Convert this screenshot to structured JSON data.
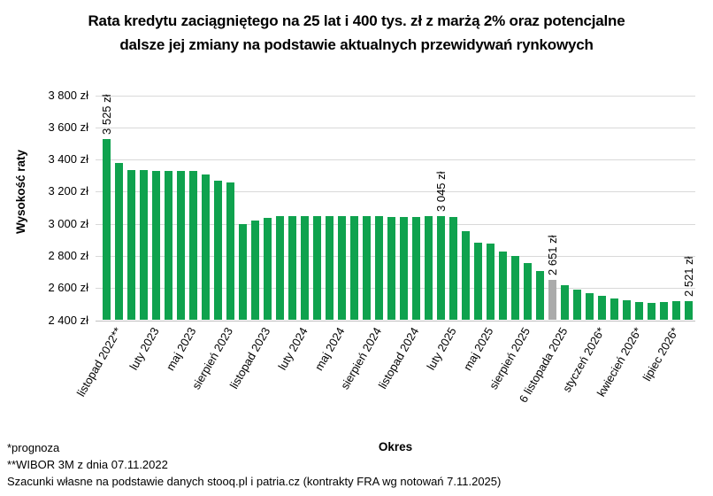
{
  "chart_data": {
    "type": "bar",
    "title_lines": [
      "Rata kredytu zaciągniętego na 25 lat i 400 tys. zł z marżą 2% oraz potencjalne",
      "dalsze jej zmiany na podstawie aktualnych przewidywań rynkowych"
    ],
    "ylabel": "Wysokość raty",
    "xlabel": "Okres",
    "ylim": [
      2400,
      3800
    ],
    "ytick_values": [
      3800,
      3600,
      3400,
      3200,
      3000,
      2800,
      2600,
      2400
    ],
    "ytick_labels": [
      "3 800 zł",
      "3 600 zł",
      "3 400 zł",
      "3 200 zł",
      "3 000 zł",
      "2 800 zł",
      "2 600 zł",
      "2 400 zł"
    ],
    "grid": true,
    "legend": "none",
    "bar_color": "#0FA24E",
    "highlight_color": "#ABABAB",
    "grid_color": "#D9D9D9",
    "highlight_index": 36,
    "values": [
      3525,
      3380,
      3336,
      3333,
      3331,
      3329,
      3330,
      3330,
      3309,
      3266,
      3256,
      3000,
      3022,
      3038,
      3046,
      3050,
      3048,
      3046,
      3048,
      3049,
      3050,
      3048,
      3045,
      3043,
      3042,
      3044,
      3047,
      3045,
      3044,
      2955,
      2885,
      2876,
      2827,
      2800,
      2755,
      2706,
      2651,
      2615,
      2590,
      2570,
      2550,
      2537,
      2526,
      2514,
      2506,
      2512,
      2516,
      2521
    ],
    "x_tick_labels": [
      {
        "index": 0,
        "label": "listopad 2022**"
      },
      {
        "index": 3,
        "label": "luty 2023"
      },
      {
        "index": 6,
        "label": "maj 2023"
      },
      {
        "index": 9,
        "label": "sierpień 2023"
      },
      {
        "index": 12,
        "label": "listopad 2023"
      },
      {
        "index": 15,
        "label": "luty 2024"
      },
      {
        "index": 18,
        "label": "maj 2024"
      },
      {
        "index": 21,
        "label": "sierpień 2024"
      },
      {
        "index": 24,
        "label": "listopad 2024"
      },
      {
        "index": 27,
        "label": "luty 2025"
      },
      {
        "index": 30,
        "label": "maj 2025"
      },
      {
        "index": 33,
        "label": "sierpień 2025"
      },
      {
        "index": 36,
        "label": "6 listopada 2025"
      },
      {
        "index": 39,
        "label": "styczeń 2026*"
      },
      {
        "index": 42,
        "label": "kwiecień 2026*"
      },
      {
        "index": 45,
        "label": "lipiec 2026*"
      }
    ],
    "data_labels": [
      {
        "index": 0,
        "text": "3 525 zł"
      },
      {
        "index": 27,
        "text": "3 045 zł"
      },
      {
        "index": 36,
        "text": "2 651 zł"
      },
      {
        "index": 47,
        "text": "2 521 zł"
      }
    ]
  },
  "footnotes": [
    "*prognoza",
    "**WIBOR 3M z dnia 07.11.2022",
    "Szacunki własne na podstawie danych stooq.pl i patria.cz (kontrakty FRA wg notowań 7.11.2025)"
  ]
}
